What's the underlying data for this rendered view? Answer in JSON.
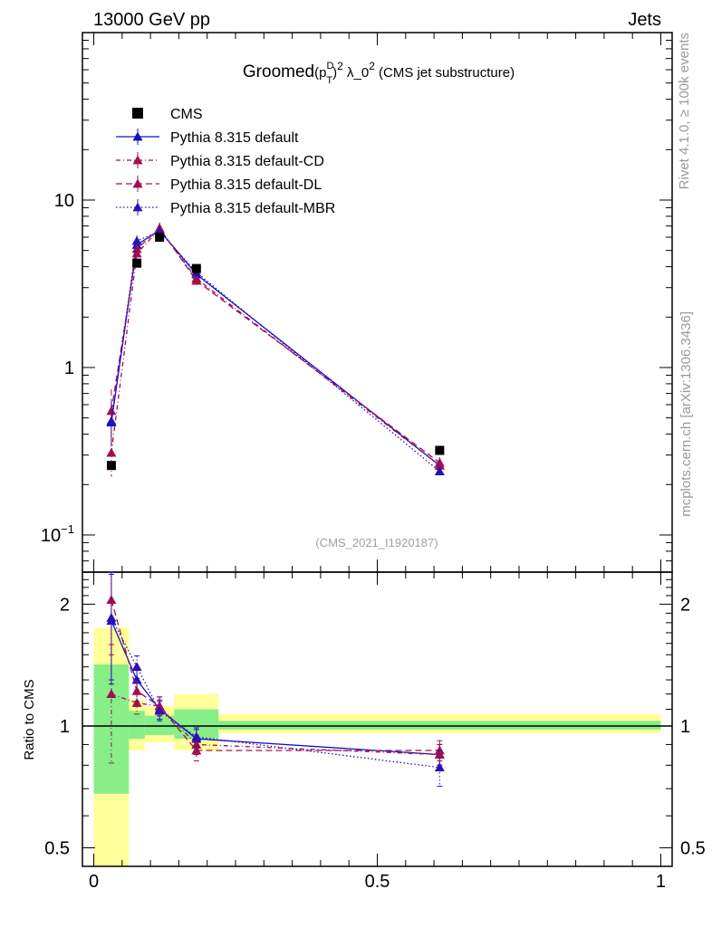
{
  "header": {
    "left_label": "13000 GeV pp",
    "right_label": "Jets"
  },
  "side_labels": {
    "top": "Rivet 4.1.0, ≥ 100k events",
    "bottom": "mcplots.cern.ch [arXiv:1306.3436]"
  },
  "chart_data": {
    "type": "line",
    "title": {
      "prefix": "Groomed",
      "p": "(p",
      "sup_d": "D",
      "sub_t": "T",
      "close": ")",
      "sq": "2",
      "lambda": " λ_0",
      "sq2": "2",
      "suffix": " (CMS jet substructure)"
    },
    "watermark": "(CMS_2021_I1920187)",
    "ylabel_ratio": "Ratio to CMS",
    "main_yscale": "log",
    "main_ylim": [
      0.06,
      100
    ],
    "main_yticks": [
      {
        "value": 10,
        "label": "10"
      },
      {
        "value": 1,
        "label": "1"
      },
      {
        "value": 0.1,
        "label": "10",
        "sup": "−1"
      }
    ],
    "ratio_yscale": "log",
    "ratio_ylim": [
      0.45,
      2.4
    ],
    "ratio_yticks": [
      {
        "value": 2,
        "label": "2"
      },
      {
        "value": 1,
        "label": "1"
      },
      {
        "value": 0.5,
        "label": "0.5"
      }
    ],
    "xlim": [
      -0.02,
      1.02
    ],
    "xticks": [
      {
        "value": 0,
        "label": "0"
      },
      {
        "value": 0.5,
        "label": "0.5"
      },
      {
        "value": 1,
        "label": "1"
      }
    ],
    "bin_edges": [
      0,
      0.062,
      0.09,
      0.142,
      0.22,
      1.0
    ],
    "data": {
      "name": "CMS",
      "x": [
        0.031,
        0.076,
        0.116,
        0.181,
        0.61
      ],
      "y": [
        0.26,
        4.2,
        6.0,
        3.9,
        0.32
      ]
    },
    "ratio_bands": {
      "inner": [
        [
          0.68,
          1.42
        ],
        [
          0.93,
          1.09
        ],
        [
          0.95,
          1.06
        ],
        [
          0.93,
          1.1
        ],
        [
          0.98,
          1.03
        ]
      ],
      "outer": [
        [
          0.4,
          1.75
        ],
        [
          0.87,
          1.16
        ],
        [
          0.91,
          1.12
        ],
        [
          0.87,
          1.2
        ],
        [
          0.96,
          1.07
        ]
      ]
    },
    "series": [
      {
        "name": "Pythia 8.315 default",
        "color": "#1010cc",
        "dash": "",
        "y": [
          0.47,
          5.4,
          6.6,
          3.6,
          0.26
        ],
        "ratio": [
          1.82,
          1.3,
          1.1,
          0.93,
          0.85
        ],
        "ratio_err": [
          0.55,
          0.08,
          0.06,
          0.05,
          0.05
        ]
      },
      {
        "name": "Pythia 8.315 default-CD",
        "color": "#a01050",
        "dash": "5,3,1,3",
        "y": [
          0.31,
          4.8,
          6.7,
          3.4,
          0.26
        ],
        "ratio": [
          1.2,
          1.14,
          1.12,
          0.9,
          0.85
        ],
        "ratio_err": [
          0.39,
          0.07,
          0.06,
          0.05,
          0.05
        ]
      },
      {
        "name": "Pythia 8.315 default-DL",
        "color": "#a01050",
        "dash": "7,4",
        "y": [
          0.55,
          5.1,
          6.8,
          3.3,
          0.27
        ],
        "ratio": [
          2.05,
          1.22,
          1.12,
          0.87,
          0.87
        ],
        "ratio_err": [
          0.55,
          0.07,
          0.06,
          0.05,
          0.05
        ]
      },
      {
        "name": "Pythia 8.315 default-MBR",
        "color": "#2a10bb",
        "dash": "1.5,2.5",
        "y": [
          0.48,
          5.7,
          6.5,
          3.7,
          0.24
        ],
        "ratio": [
          1.85,
          1.4,
          1.09,
          0.94,
          0.79
        ],
        "ratio_err": [
          0.55,
          0.09,
          0.06,
          0.05,
          0.08
        ]
      }
    ]
  }
}
